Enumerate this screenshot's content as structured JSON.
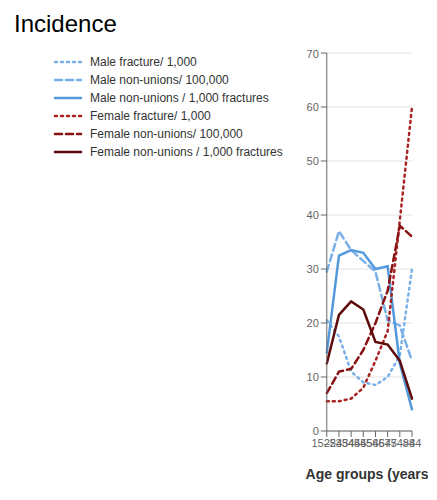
{
  "chart_data": {
    "type": "line",
    "title": "Incidence",
    "xlabel": "Age groups (years)",
    "categories": [
      "15–24",
      "25–34",
      "35–44",
      "45–54",
      "55–64",
      "65–74",
      "75–84",
      ">84"
    ],
    "ylim": [
      0,
      70
    ],
    "yticks": [
      0,
      10,
      20,
      30,
      40,
      50,
      60,
      70
    ],
    "grid": true,
    "legend": "upper left",
    "series": [
      {
        "name": "Male fracture/ 1,000",
        "color": "#7ab0e8",
        "line_style": "dotted",
        "values": [
          20.5,
          17.5,
          11.0,
          9.0,
          8.5,
          10.0,
          14.0,
          30.0
        ]
      },
      {
        "name": "Male non-unions/ 100,000",
        "color": "#7ab0e8",
        "line_style": "dashed",
        "values": [
          29.5,
          37.0,
          33.5,
          31.5,
          29.5,
          20.5,
          19.5,
          13.0
        ]
      },
      {
        "name": "Male non-unions / 1,000 fractures",
        "color": "#5599dd",
        "line_style": "solid",
        "values": [
          14.5,
          32.5,
          33.5,
          33.0,
          30.0,
          30.5,
          12.5,
          4.0
        ]
      },
      {
        "name": "Female fracture/ 1,000",
        "color": "#aa2222",
        "line_style": "dotted",
        "values": [
          5.5,
          5.5,
          6.0,
          8.0,
          13.0,
          18.5,
          39.0,
          60.0
        ]
      },
      {
        "name": "Female non-unions/ 100,000",
        "color": "#881111",
        "line_style": "dashed",
        "values": [
          7.0,
          11.0,
          11.5,
          15.0,
          20.0,
          26.0,
          38.0,
          36.0
        ]
      },
      {
        "name": "Female non-unions / 1,000 fractures",
        "color": "#5c0a0a",
        "line_style": "solid",
        "values": [
          12.5,
          21.5,
          24.0,
          22.5,
          16.5,
          16.0,
          13.0,
          6.0
        ]
      }
    ]
  }
}
